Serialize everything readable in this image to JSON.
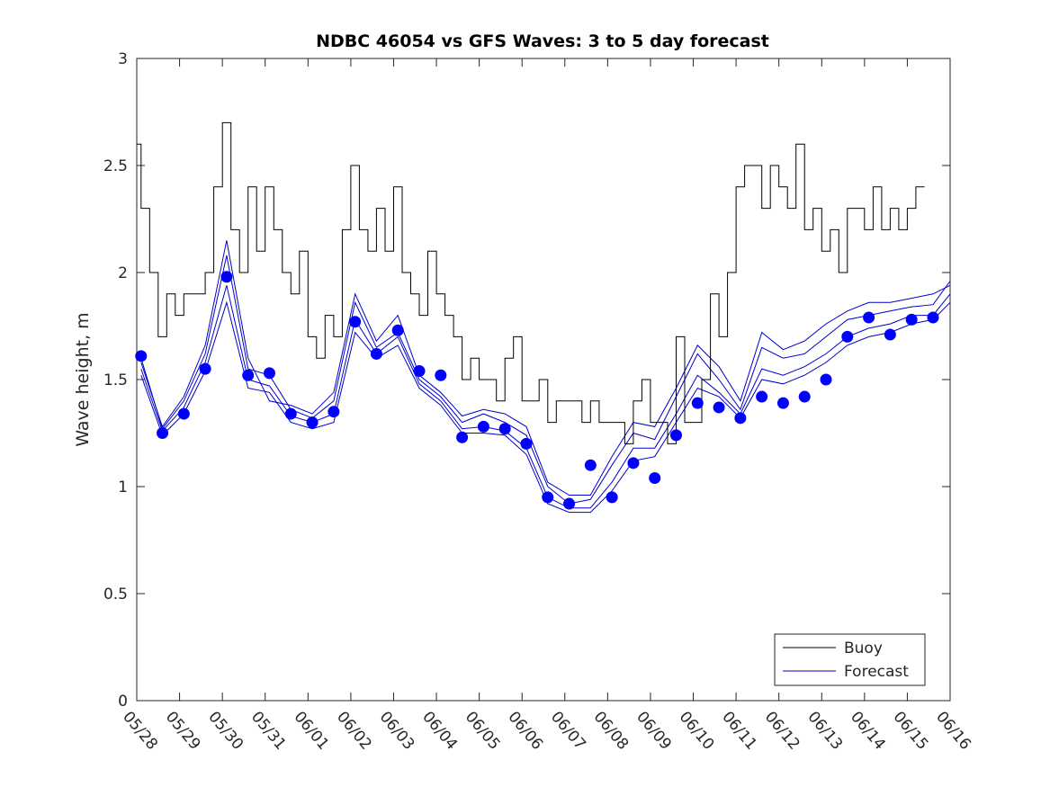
{
  "chart_data": {
    "type": "line",
    "title": "NDBC 46054 vs GFS Waves: 3 to 5 day forecast",
    "xlabel": "",
    "ylabel": "Wave height, m",
    "xlim": [
      0,
      19
    ],
    "ylim": [
      0,
      3
    ],
    "x_tick_labels": [
      "05/28",
      "05/29",
      "05/30",
      "05/31",
      "06/01",
      "06/02",
      "06/03",
      "06/04",
      "06/05",
      "06/06",
      "06/07",
      "06/08",
      "06/09",
      "06/10",
      "06/11",
      "06/12",
      "06/13",
      "06/14",
      "06/15",
      "06/16"
    ],
    "y_ticks": [
      0,
      0.5,
      1,
      1.5,
      2,
      2.5,
      3
    ],
    "y_tick_labels": [
      "0",
      "0.5",
      "1",
      "1.5",
      "2",
      "2.5",
      "3"
    ],
    "legend": {
      "position": "bottom-right",
      "entries": [
        "Buoy",
        "Forecast"
      ]
    },
    "colors": {
      "buoy": "#000000",
      "forecast": "#0000cc",
      "points": "#0000ff",
      "axis": "#262626"
    },
    "buoy": {
      "x": [
        0.0,
        0.1,
        0.3,
        0.5,
        0.7,
        0.9,
        1.1,
        1.3,
        1.6,
        1.8,
        2.0,
        2.2,
        2.4,
        2.6,
        2.8,
        3.0,
        3.2,
        3.4,
        3.6,
        3.8,
        4.0,
        4.2,
        4.4,
        4.6,
        4.8,
        5.0,
        5.2,
        5.4,
        5.6,
        5.8,
        6.0,
        6.2,
        6.4,
        6.6,
        6.8,
        7.0,
        7.2,
        7.4,
        7.6,
        7.8,
        8.0,
        8.2,
        8.4,
        8.6,
        8.8,
        9.0,
        9.2,
        9.4,
        9.6,
        9.8,
        10.0,
        10.2,
        10.4,
        10.6,
        10.8,
        11.0,
        11.2,
        11.4,
        11.6,
        11.8,
        12.0,
        12.2,
        12.4,
        12.6,
        12.8,
        13.0,
        13.2,
        13.4,
        13.6,
        13.8,
        14.0,
        14.2,
        14.4,
        14.6,
        14.8,
        15.0,
        15.2,
        15.4,
        15.6,
        15.8,
        16.0,
        16.2,
        16.4,
        16.6,
        16.8,
        17.0,
        17.2,
        17.4,
        17.6,
        17.8,
        18.0,
        18.2,
        18.4
      ],
      "y": [
        2.6,
        2.3,
        2.0,
        1.7,
        1.9,
        1.8,
        1.9,
        1.9,
        2.0,
        2.4,
        2.7,
        2.2,
        2.0,
        2.4,
        2.1,
        2.4,
        2.2,
        2.0,
        1.9,
        2.1,
        1.7,
        1.6,
        1.8,
        1.7,
        2.2,
        2.5,
        2.2,
        2.1,
        2.3,
        2.1,
        2.4,
        2.0,
        1.9,
        1.8,
        2.1,
        1.9,
        1.8,
        1.7,
        1.5,
        1.6,
        1.5,
        1.5,
        1.4,
        1.6,
        1.7,
        1.4,
        1.4,
        1.5,
        1.3,
        1.4,
        1.4,
        1.4,
        1.3,
        1.4,
        1.3,
        1.3,
        1.3,
        1.2,
        1.4,
        1.5,
        1.3,
        1.3,
        1.2,
        1.7,
        1.3,
        1.3,
        1.5,
        1.9,
        1.7,
        2.0,
        2.4,
        2.5,
        2.5,
        2.3,
        2.5,
        2.4,
        2.3,
        2.6,
        2.2,
        2.3,
        2.1,
        2.2,
        2.0,
        2.3,
        2.3,
        2.2,
        2.4,
        2.2,
        2.3,
        2.2,
        2.3,
        2.4,
        2.4
      ]
    },
    "forecast_points": {
      "x": [
        0.1,
        0.6,
        1.1,
        1.6,
        2.1,
        2.6,
        3.1,
        3.6,
        4.1,
        4.6,
        5.1,
        5.6,
        6.1,
        6.6,
        7.1,
        7.6,
        8.1,
        8.6,
        9.1,
        9.6,
        10.1,
        10.6,
        11.1,
        11.6,
        12.1,
        12.6,
        13.1,
        13.6,
        14.1,
        14.6,
        15.1,
        15.6,
        16.1,
        16.6,
        17.1,
        17.6,
        18.1,
        18.6
      ],
      "y": [
        1.61,
        1.25,
        1.34,
        1.55,
        1.98,
        1.52,
        1.53,
        1.34,
        1.3,
        1.35,
        1.77,
        1.62,
        1.73,
        1.54,
        1.52,
        1.23,
        1.28,
        1.27,
        1.2,
        0.95,
        0.92,
        1.1,
        0.95,
        1.11,
        1.04,
        1.24,
        1.39,
        1.37,
        1.32,
        1.42,
        1.39,
        1.42,
        1.5,
        1.7,
        1.79,
        1.71,
        1.78,
        1.79
      ]
    },
    "forecast_lines": [
      {
        "x": [
          0.1,
          0.6,
          1.1,
          1.6,
          2.1,
          2.6,
          3.1,
          3.6,
          4.1,
          4.6,
          5.1,
          5.6,
          6.1,
          6.6,
          7.1,
          7.6,
          8.1,
          8.6,
          9.1,
          9.6,
          10.1,
          10.6,
          11.1,
          11.6,
          12.1,
          12.6,
          13.1,
          13.6,
          14.1,
          14.6,
          15.1,
          15.6,
          16.1,
          16.6,
          17.1,
          17.6,
          18.1,
          18.6,
          19.0
        ],
        "y": [
          1.6,
          1.27,
          1.4,
          1.62,
          2.08,
          1.55,
          1.52,
          1.36,
          1.32,
          1.4,
          1.86,
          1.65,
          1.72,
          1.5,
          1.42,
          1.3,
          1.34,
          1.3,
          1.24,
          1.0,
          0.92,
          0.94,
          1.1,
          1.25,
          1.22,
          1.42,
          1.62,
          1.5,
          1.36,
          1.65,
          1.6,
          1.62,
          1.7,
          1.78,
          1.8,
          1.82,
          1.84,
          1.85,
          1.96
        ]
      },
      {
        "x": [
          0.1,
          0.6,
          1.1,
          1.6,
          2.1,
          2.6,
          3.1,
          3.6,
          4.1,
          4.6,
          5.1,
          5.6,
          6.1,
          6.6,
          7.1,
          7.6,
          8.1,
          8.6,
          9.1,
          9.6,
          10.1,
          10.6,
          11.1,
          11.6,
          12.1,
          12.6,
          13.1,
          13.6,
          14.1,
          14.6,
          15.1,
          15.6,
          16.1,
          16.6,
          17.1,
          17.6,
          18.1,
          18.6,
          19.0
        ],
        "y": [
          1.55,
          1.26,
          1.37,
          1.58,
          1.94,
          1.5,
          1.47,
          1.33,
          1.3,
          1.34,
          1.78,
          1.62,
          1.7,
          1.48,
          1.4,
          1.27,
          1.28,
          1.26,
          1.18,
          0.95,
          0.9,
          0.9,
          1.02,
          1.18,
          1.18,
          1.34,
          1.52,
          1.44,
          1.34,
          1.55,
          1.52,
          1.56,
          1.62,
          1.7,
          1.74,
          1.76,
          1.8,
          1.8,
          1.9
        ]
      },
      {
        "x": [
          0.1,
          0.6,
          1.1,
          1.6,
          2.1,
          2.6,
          3.1,
          3.6,
          4.1,
          4.6,
          5.1,
          5.6,
          6.1,
          6.6,
          7.1,
          7.6,
          8.1,
          8.6,
          9.1,
          9.6,
          10.1,
          10.6,
          11.1,
          11.6,
          12.1,
          12.6,
          13.1,
          13.6,
          14.1,
          14.6,
          15.1,
          15.6,
          16.1,
          16.6,
          17.1,
          17.6,
          18.1,
          18.6,
          19.0
        ],
        "y": [
          1.52,
          1.24,
          1.34,
          1.54,
          1.86,
          1.46,
          1.44,
          1.3,
          1.27,
          1.3,
          1.72,
          1.6,
          1.66,
          1.46,
          1.38,
          1.25,
          1.25,
          1.24,
          1.15,
          0.92,
          0.88,
          0.88,
          0.98,
          1.12,
          1.14,
          1.3,
          1.46,
          1.42,
          1.32,
          1.5,
          1.48,
          1.52,
          1.58,
          1.66,
          1.7,
          1.72,
          1.76,
          1.78,
          1.86
        ]
      },
      {
        "x": [
          0.1,
          0.6,
          1.1,
          1.6,
          2.1,
          2.6,
          3.1,
          3.6,
          4.1,
          4.6,
          5.1,
          5.6,
          6.1,
          6.6,
          7.1,
          7.6,
          8.1,
          8.6,
          9.1,
          9.6,
          10.1,
          10.6,
          11.1,
          11.6,
          12.1,
          12.6,
          13.1,
          13.6,
          14.1,
          14.6,
          15.1,
          15.6,
          16.1,
          16.6,
          17.1,
          17.6,
          18.1,
          18.6,
          19.0
        ],
        "y": [
          1.58,
          1.28,
          1.42,
          1.66,
          2.15,
          1.6,
          1.4,
          1.38,
          1.34,
          1.44,
          1.9,
          1.68,
          1.8,
          1.52,
          1.44,
          1.33,
          1.36,
          1.34,
          1.28,
          1.02,
          0.96,
          0.96,
          1.14,
          1.3,
          1.28,
          1.46,
          1.66,
          1.56,
          1.4,
          1.72,
          1.64,
          1.68,
          1.76,
          1.82,
          1.86,
          1.86,
          1.88,
          1.9,
          1.94
        ]
      }
    ]
  }
}
